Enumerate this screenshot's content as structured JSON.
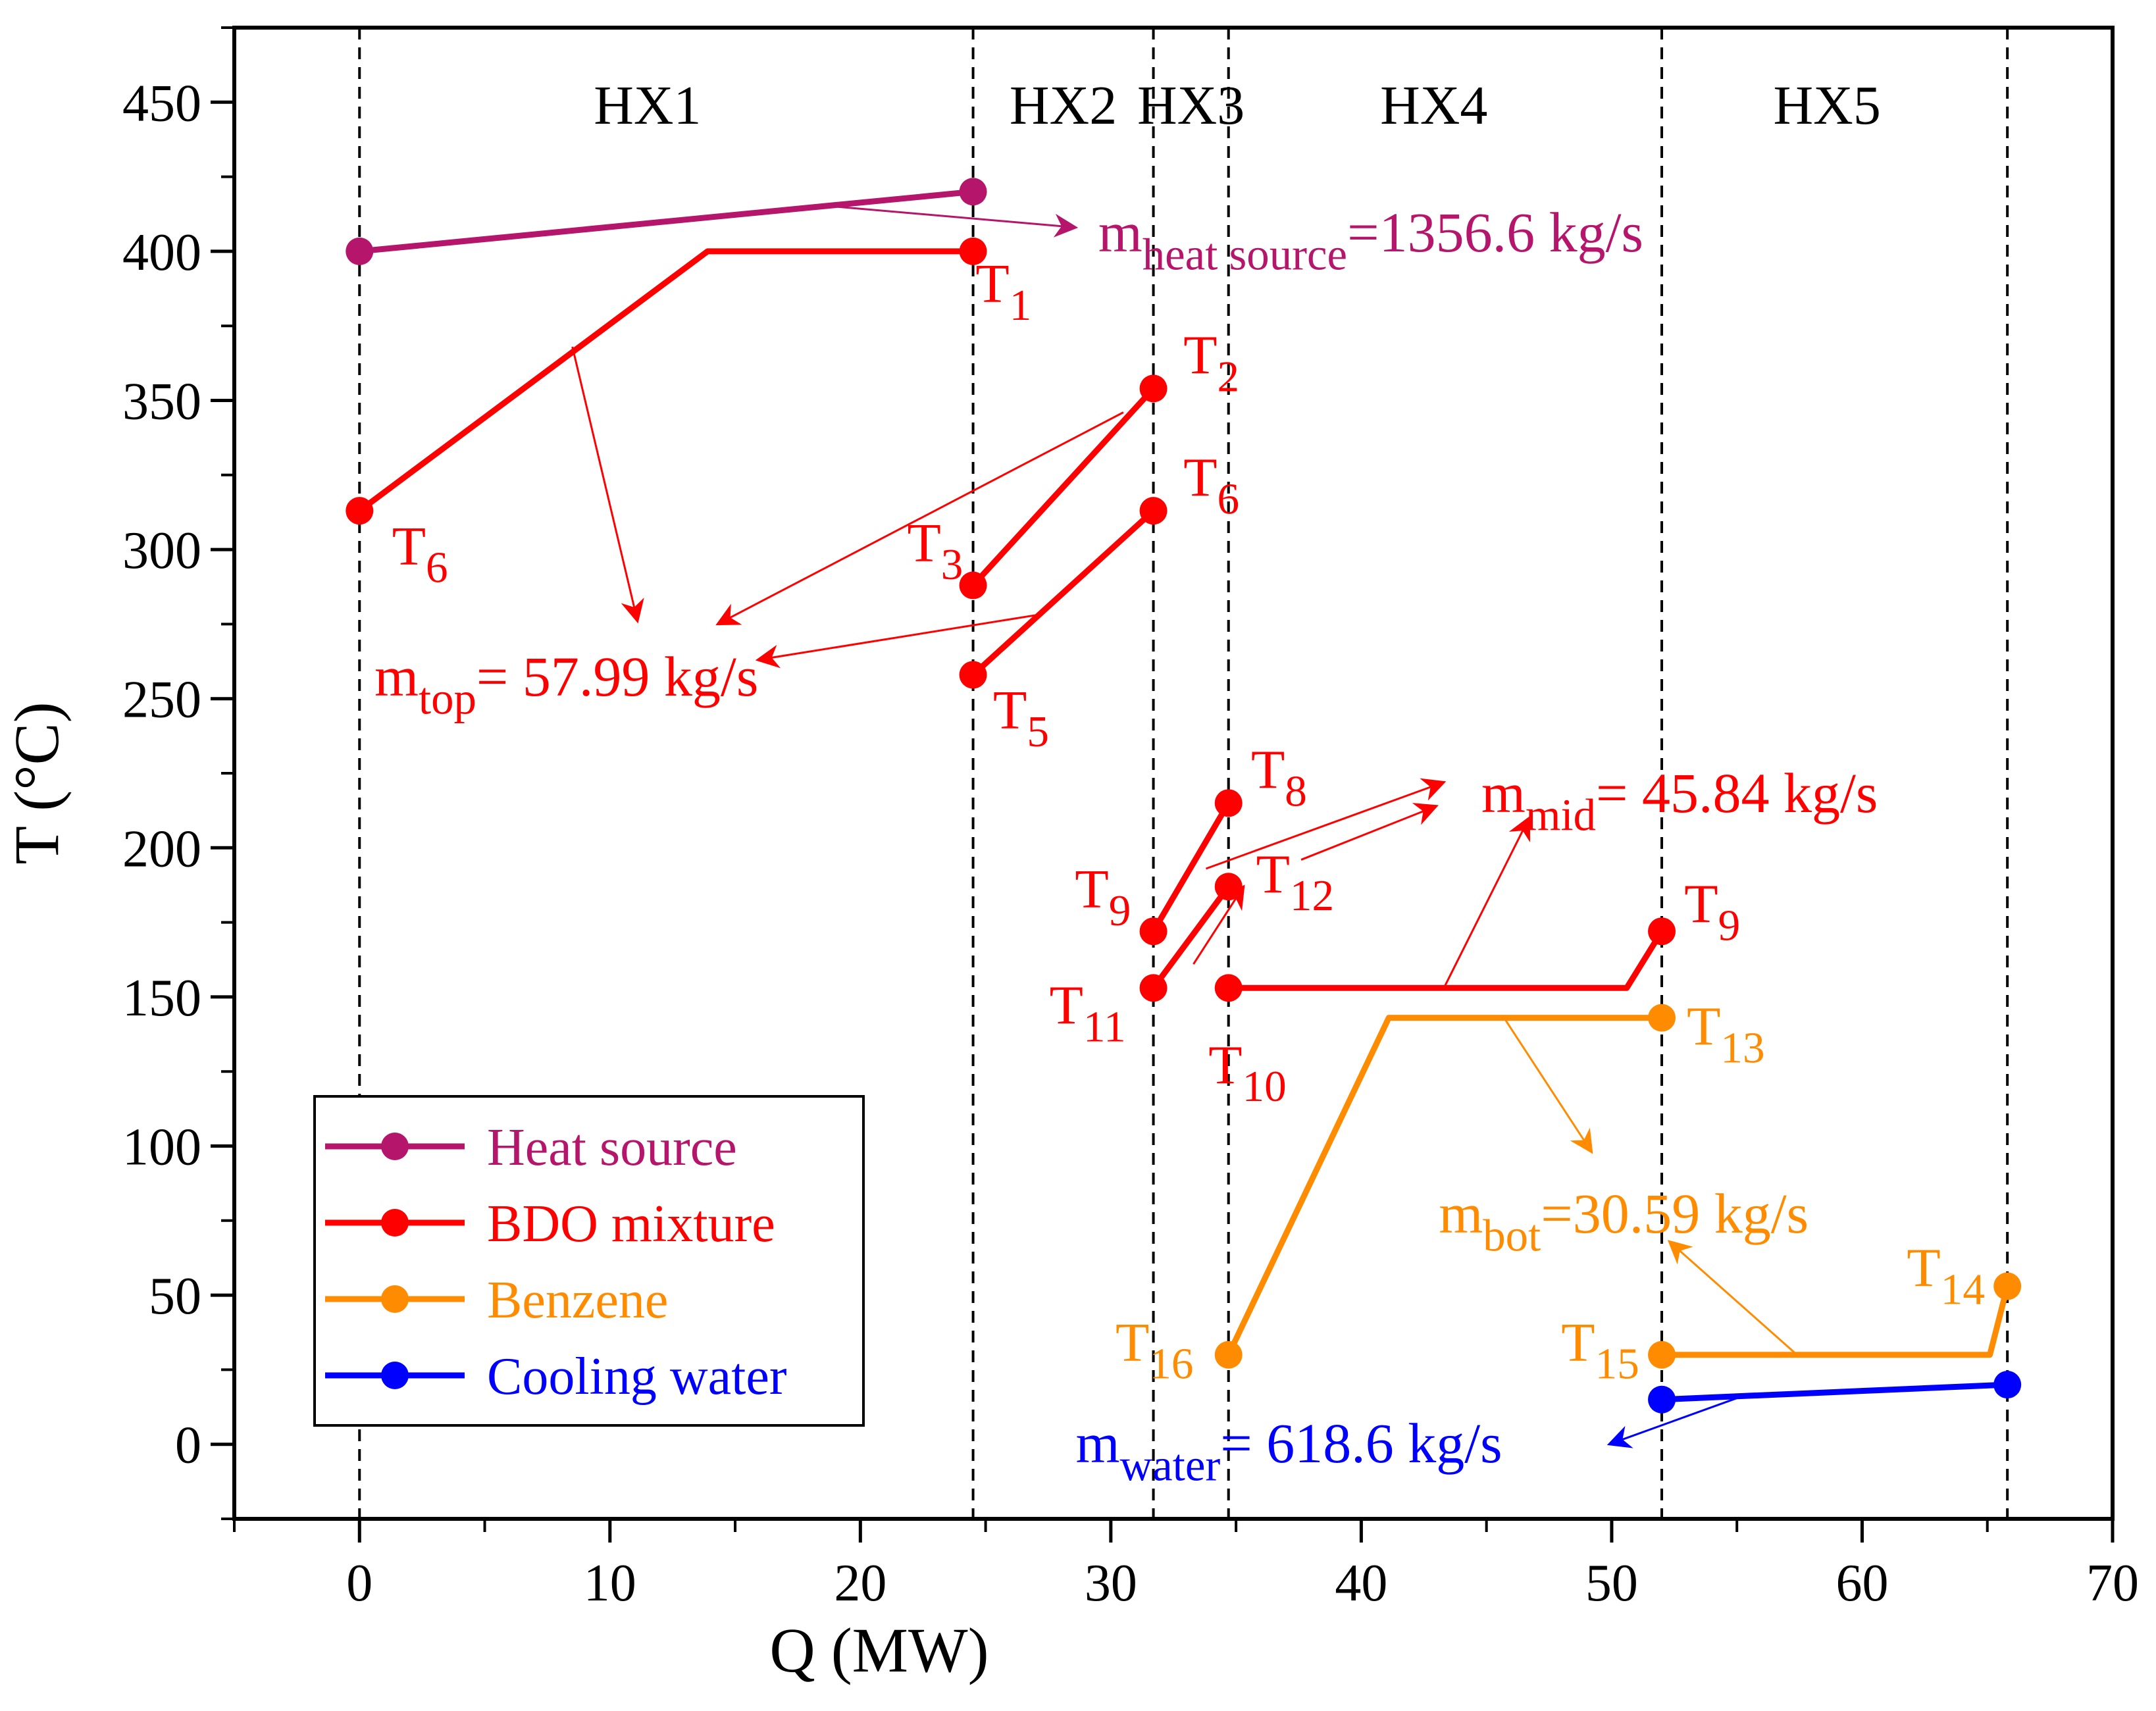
{
  "chart_data": {
    "type": "line",
    "title": "",
    "xlabel": "Q (MW)",
    "ylabel": "T (°C)",
    "xlim": [
      -5,
      70
    ],
    "ylim": [
      -25,
      475
    ],
    "xticks": [
      0,
      10,
      20,
      30,
      40,
      50,
      60,
      70
    ],
    "yticks": [
      0,
      50,
      100,
      150,
      200,
      250,
      300,
      350,
      400,
      450
    ],
    "x_minor_step": 5,
    "y_minor_step": 25,
    "grid": false,
    "legend_position": "bottom-left",
    "colors": {
      "heat_source": "#b5156a",
      "bdo": "#ff0000",
      "benzene": "#ff8c00",
      "water": "#0000ff",
      "axis": "#000000"
    },
    "dividers": [
      0,
      24.5,
      31.7,
      34.7,
      52.0,
      65.8
    ],
    "sections": [
      {
        "label": "HX1",
        "x": 11.5
      },
      {
        "label": "HX2",
        "x": 28.1
      },
      {
        "label": "HX3",
        "x": 33.2
      },
      {
        "label": "HX4",
        "x": 42.9
      },
      {
        "label": "HX5",
        "x": 58.6
      }
    ],
    "series": [
      {
        "name": "Heat source",
        "key": "heat_source",
        "segments": [
          {
            "points": [
              [
                0,
                400
              ],
              [
                24.5,
                420
              ]
            ],
            "markers": [
              [
                0,
                400
              ],
              [
                24.5,
                420
              ]
            ]
          }
        ]
      },
      {
        "name": "BDO mixture",
        "key": "bdo",
        "segments": [
          {
            "points": [
              [
                0,
                313
              ],
              [
                13.9,
                400
              ],
              [
                24.5,
                400
              ]
            ],
            "markers": [
              [
                0,
                313
              ],
              [
                24.5,
                400
              ]
            ]
          },
          {
            "points": [
              [
                24.5,
                288
              ],
              [
                31.7,
                354
              ]
            ],
            "markers": [
              [
                24.5,
                288
              ],
              [
                31.7,
                354
              ]
            ]
          },
          {
            "points": [
              [
                24.5,
                258
              ],
              [
                31.7,
                313
              ]
            ],
            "markers": [
              [
                24.5,
                258
              ],
              [
                31.7,
                313
              ]
            ]
          },
          {
            "points": [
              [
                31.7,
                172
              ],
              [
                34.7,
                215
              ]
            ],
            "markers": [
              [
                31.7,
                172
              ],
              [
                34.7,
                215
              ]
            ]
          },
          {
            "points": [
              [
                31.7,
                153
              ],
              [
                34.7,
                187
              ]
            ],
            "markers": [
              [
                31.7,
                153
              ],
              [
                34.7,
                187
              ]
            ]
          },
          {
            "points": [
              [
                34.7,
                153
              ],
              [
                50.6,
                153
              ],
              [
                52.0,
                172
              ]
            ],
            "markers": [
              [
                34.7,
                153
              ],
              [
                52.0,
                172
              ]
            ]
          }
        ]
      },
      {
        "name": "Benzene",
        "key": "benzene",
        "segments": [
          {
            "points": [
              [
                34.7,
                30
              ],
              [
                41.1,
                143
              ],
              [
                52.0,
                143
              ]
            ],
            "markers": [
              [
                34.7,
                30
              ],
              [
                52.0,
                143
              ]
            ]
          },
          {
            "points": [
              [
                52.0,
                30
              ],
              [
                65.1,
                30
              ],
              [
                65.8,
                53
              ]
            ],
            "markers": [
              [
                52.0,
                30
              ],
              [
                65.8,
                53
              ]
            ]
          }
        ]
      },
      {
        "name": "Cooling water",
        "key": "water",
        "segments": [
          {
            "points": [
              [
                52.0,
                15
              ],
              [
                65.8,
                20
              ]
            ],
            "markers": [
              [
                52.0,
                15
              ],
              [
                65.8,
                20
              ]
            ]
          }
        ]
      }
    ],
    "point_labels": [
      {
        "id": "T1-top",
        "main": "T",
        "sub": "1",
        "key": "bdo",
        "x": 24.6,
        "y": 383,
        "anchor": "start"
      },
      {
        "id": "T2-hx2",
        "main": "T",
        "sub": "2",
        "key": "bdo",
        "x": 32.9,
        "y": 359,
        "anchor": "start"
      },
      {
        "id": "T6-left",
        "main": "T",
        "sub": "6",
        "key": "bdo",
        "x": 1.3,
        "y": 295,
        "anchor": "start"
      },
      {
        "id": "T3-hx2",
        "main": "T",
        "sub": "3",
        "key": "bdo",
        "x": 24.1,
        "y": 296,
        "anchor": "end"
      },
      {
        "id": "T6-hx2",
        "main": "T",
        "sub": "6",
        "key": "bdo",
        "x": 32.9,
        "y": 318,
        "anchor": "start"
      },
      {
        "id": "T5-hx2",
        "main": "T",
        "sub": "5",
        "key": "bdo",
        "x": 25.3,
        "y": 240,
        "anchor": "start"
      },
      {
        "id": "T8-hx3",
        "main": "T",
        "sub": "8",
        "key": "bdo",
        "x": 35.6,
        "y": 220,
        "anchor": "start"
      },
      {
        "id": "T9-hx3",
        "main": "T",
        "sub": "9",
        "key": "bdo",
        "x": 30.8,
        "y": 180,
        "anchor": "end"
      },
      {
        "id": "T12-hx3",
        "main": "T",
        "sub": "12",
        "key": "bdo",
        "x": 35.8,
        "y": 185,
        "anchor": "start"
      },
      {
        "id": "T11-hx3",
        "main": "T",
        "sub": "11",
        "key": "bdo",
        "x": 30.6,
        "y": 141,
        "anchor": "end"
      },
      {
        "id": "T10-hx4",
        "main": "T",
        "sub": "10",
        "key": "bdo",
        "x": 33.9,
        "y": 121,
        "anchor": "start"
      },
      {
        "id": "T9-hx4",
        "main": "T",
        "sub": "9",
        "key": "bdo",
        "x": 52.9,
        "y": 175,
        "anchor": "start"
      },
      {
        "id": "T13-hx4",
        "main": "T",
        "sub": "13",
        "key": "benzene",
        "x": 53.0,
        "y": 134,
        "anchor": "start"
      },
      {
        "id": "T16-hx4",
        "main": "T",
        "sub": "16",
        "key": "benzene",
        "x": 33.3,
        "y": 28,
        "anchor": "end"
      },
      {
        "id": "T15-hx5",
        "main": "T",
        "sub": "15",
        "key": "benzene",
        "x": 51.1,
        "y": 28,
        "anchor": "end"
      },
      {
        "id": "T14-hx5",
        "main": "T",
        "sub": "14",
        "key": "benzene",
        "x": 64.9,
        "y": 53,
        "anchor": "end"
      }
    ],
    "flow_labels": [
      {
        "id": "m-heat-source",
        "main": "m",
        "sub": "heat source",
        "value": "=1356.6 kg/s",
        "key": "heat_source",
        "x": 29.5,
        "y": 400
      },
      {
        "id": "m-top",
        "main": "m",
        "sub": "top",
        "value": "= 57.99 kg/s",
        "key": "bdo",
        "x": 0.6,
        "y": 251
      },
      {
        "id": "m-mid",
        "main": "m",
        "sub": "mid",
        "value": "= 45.84 kg/s",
        "key": "bdo",
        "x": 44.8,
        "y": 212
      },
      {
        "id": "m-bot",
        "main": "m",
        "sub": "bot",
        "value": "=30.59 kg/s",
        "key": "benzene",
        "x": 43.1,
        "y": 71
      },
      {
        "id": "m-water",
        "main": "m",
        "sub": "water",
        "value": "= 618.6 kg/s",
        "key": "water",
        "x": 28.6,
        "y": -6
      }
    ],
    "arrows": [
      {
        "key": "heat_source",
        "from": [
          19.0,
          415
        ],
        "to": [
          28.6,
          408
        ]
      },
      {
        "key": "bdo",
        "from": [
          8.5,
          368
        ],
        "to": [
          11.1,
          276
        ]
      },
      {
        "key": "bdo",
        "from": [
          30.5,
          346
        ],
        "to": [
          14.3,
          275
        ]
      },
      {
        "key": "bdo",
        "from": [
          27.0,
          278
        ],
        "to": [
          15.9,
          263
        ]
      },
      {
        "key": "bdo",
        "from": [
          33.8,
          193
        ],
        "to": [
          43.3,
          222
        ]
      },
      {
        "key": "bdo",
        "from": [
          37.6,
          196
        ],
        "to": [
          43.0,
          214
        ]
      },
      {
        "key": "bdo",
        "from": [
          43.3,
          153
        ],
        "to": [
          46.7,
          210
        ]
      },
      {
        "key": "bdo",
        "from": [
          33.3,
          161
        ],
        "to": [
          35.3,
          187
        ]
      },
      {
        "key": "benzene",
        "from": [
          45.7,
          143
        ],
        "to": [
          49.2,
          98
        ]
      },
      {
        "key": "benzene",
        "from": [
          57.4,
          30
        ],
        "to": [
          52.3,
          68
        ]
      },
      {
        "key": "water",
        "from": [
          55.5,
          17
        ],
        "to": [
          49.9,
          0
        ]
      }
    ],
    "legend": [
      {
        "label": "Heat source",
        "key": "heat_source"
      },
      {
        "label": "BDO mixture",
        "key": "bdo"
      },
      {
        "label": "Benzene",
        "key": "benzene"
      },
      {
        "label": "Cooling water",
        "key": "water"
      }
    ]
  }
}
